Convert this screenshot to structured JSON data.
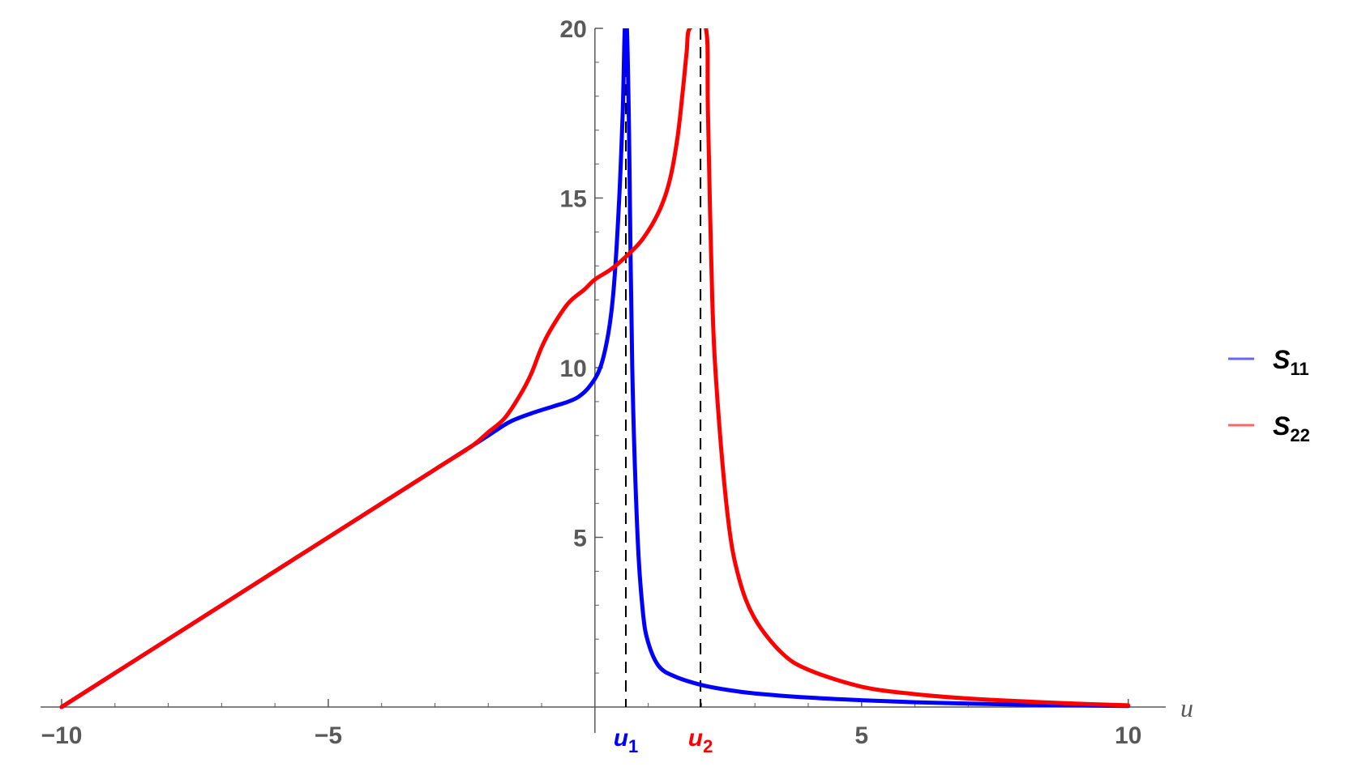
{
  "chart_data": {
    "type": "line",
    "xlabel": "u",
    "ylabel": "",
    "xlim": [
      -10,
      10.4
    ],
    "ylim": [
      0,
      20
    ],
    "x_ticks": [
      -10,
      -5,
      5,
      10
    ],
    "x_tick_labels": [
      "−10",
      "−5",
      "5",
      "10"
    ],
    "y_ticks": [
      5,
      10,
      15,
      20
    ],
    "y_tick_labels": [
      "5",
      "10",
      "15",
      "20"
    ],
    "grid": false,
    "legend_position": "right",
    "colors": {
      "s11": "#0000ff",
      "s22": "#ff0000",
      "marker": "#000000",
      "axis": "#595959"
    },
    "markers": [
      {
        "x": 0.58,
        "label": "u",
        "sub": "1",
        "color": "#0000ff"
      },
      {
        "x": 1.98,
        "label": "u",
        "sub": "2",
        "color": "#ff0000"
      }
    ],
    "series": [
      {
        "name": "S11",
        "name_main": "S",
        "name_sub": "11",
        "color": "#0000ff",
        "x": [
          -10,
          -8,
          -6,
          -4,
          -3,
          -2.3,
          -2,
          -1.6,
          -1.2,
          -0.8,
          -0.5,
          -0.3,
          -0.1,
          0.1,
          0.25,
          0.35,
          0.45,
          0.52,
          0.56,
          0.6,
          0.64,
          0.7,
          0.8,
          0.9,
          1.0,
          1.2,
          1.5,
          2.0,
          2.5,
          3.0,
          4.0,
          5.0,
          6.0,
          7.0,
          8.0,
          9.0,
          10.0
        ],
        "y": [
          0,
          2,
          4,
          6,
          7,
          7.7,
          8.0,
          8.4,
          8.65,
          8.85,
          9.0,
          9.15,
          9.45,
          10.0,
          11.0,
          12.3,
          14.8,
          17.5,
          20,
          20,
          17,
          10,
          5,
          2.8,
          1.9,
          1.2,
          0.9,
          0.65,
          0.5,
          0.4,
          0.28,
          0.2,
          0.14,
          0.1,
          0.07,
          0.05,
          0.03
        ]
      },
      {
        "name": "S22",
        "name_main": "S",
        "name_sub": "22",
        "color": "#ff0000",
        "x": [
          -10,
          -8,
          -6,
          -4,
          -3,
          -2.3,
          -2,
          -1.7,
          -1.4,
          -1.2,
          -1.0,
          -0.8,
          -0.5,
          -0.2,
          0.0,
          0.3,
          0.6,
          0.9,
          1.2,
          1.4,
          1.55,
          1.65,
          1.72,
          1.78,
          2.08,
          2.12,
          2.2,
          2.3,
          2.5,
          2.7,
          3.0,
          3.5,
          4.0,
          5.0,
          6.0,
          7.0,
          8.0,
          9.0,
          10.0
        ],
        "y": [
          0,
          2,
          4,
          6,
          7,
          7.7,
          8.1,
          8.5,
          9.2,
          9.8,
          10.6,
          11.2,
          11.9,
          12.3,
          12.6,
          12.9,
          13.3,
          13.8,
          14.6,
          15.5,
          16.8,
          18.2,
          19.3,
          20,
          20,
          17.5,
          12,
          9,
          5.5,
          3.8,
          2.6,
          1.6,
          1.1,
          0.6,
          0.38,
          0.25,
          0.17,
          0.1,
          0.05
        ]
      }
    ]
  }
}
